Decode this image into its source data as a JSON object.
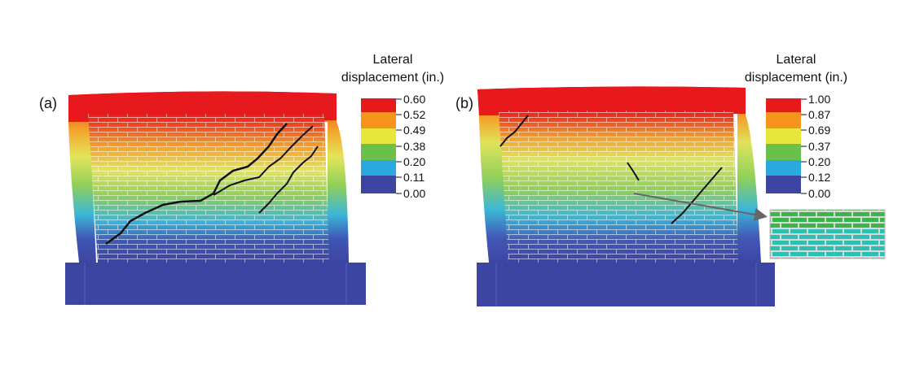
{
  "colors": {
    "red": "#e8191c",
    "orange": "#f7941d",
    "yellow": "#e6e63c",
    "green": "#6bc04b",
    "cyan": "#2aa9df",
    "navy": "#3d45a3",
    "crack": "#111111"
  },
  "panel_a": {
    "label": "(a)",
    "legend_title_line1": "Lateral",
    "legend_title_line2": "displacement (in.)",
    "legend_values": [
      "0.60",
      "0.52",
      "0.49",
      "0.38",
      "0.20",
      "0.11",
      "0.00"
    ]
  },
  "panel_b": {
    "label": "(b)",
    "legend_title_line1": "Lateral",
    "legend_title_line2": "displacement (in.)",
    "legend_values": [
      "1.00",
      "0.87",
      "0.69",
      "0.37",
      "0.20",
      "0.12",
      "0.00"
    ],
    "inset": "zoomed-brick-detail"
  }
}
